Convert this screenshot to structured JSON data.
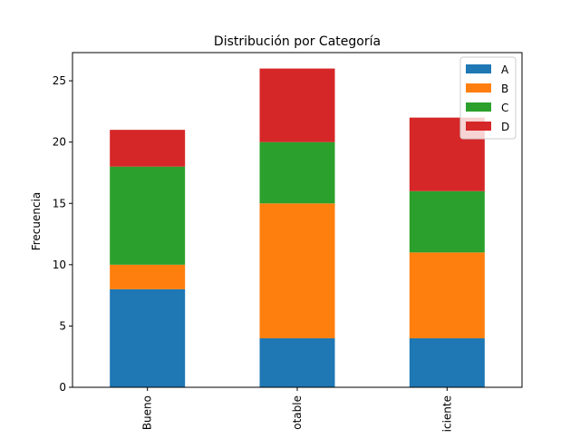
{
  "chart_data": {
    "type": "bar",
    "stacked": true,
    "title": "Distribución por Categoría",
    "xlabel": "",
    "ylabel": "Frecuencia",
    "categories": [
      "Bueno",
      "Aceptable",
      "Deficiente"
    ],
    "category_labels_visible": [
      "Bueno",
      "otable",
      "iciente"
    ],
    "yticks": [
      0,
      5,
      10,
      15,
      20,
      25
    ],
    "ylim": [
      0,
      27.3
    ],
    "grid": false,
    "legend_position": "top-right",
    "series": [
      {
        "name": "A",
        "color": "#1f77b4",
        "values": [
          8,
          4,
          4
        ]
      },
      {
        "name": "B",
        "color": "#ff7f0e",
        "values": [
          2,
          11,
          7
        ]
      },
      {
        "name": "C",
        "color": "#2ca02c",
        "values": [
          8,
          5,
          5
        ]
      },
      {
        "name": "D",
        "color": "#d62728",
        "values": [
          3,
          6,
          6
        ]
      }
    ]
  }
}
